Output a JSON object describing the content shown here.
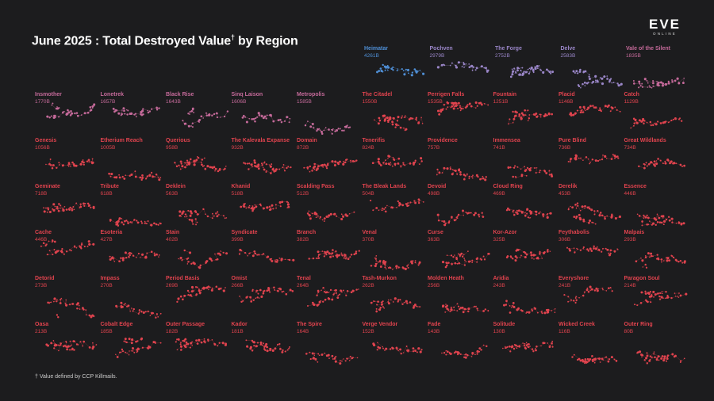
{
  "title": {
    "main": "June 2025 : Total Destroyed Value",
    "mark": "†",
    "suffix": " by Region"
  },
  "logo": {
    "brand": "EVE",
    "sub": "ONLINE"
  },
  "footnote": "† Value defined by CCP Killmails.",
  "colors": {
    "background": "#1c1c1e",
    "top": "#4f8fd6",
    "mid": "#9a86c8",
    "pink": "#c56a9a",
    "red": "#e0434e"
  },
  "chart_data": {
    "type": "scatter",
    "title": "June 2025 : Total Destroyed Value† by Region",
    "unit": "B",
    "regions": [
      {
        "name": "Heimatar",
        "value": "4261B"
      },
      {
        "name": "Pochven",
        "value": "2979B"
      },
      {
        "name": "The Forge",
        "value": "2752B"
      },
      {
        "name": "Delve",
        "value": "2583B"
      },
      {
        "name": "Vale of the Silent",
        "value": "1835B"
      },
      {
        "name": "Insmother",
        "value": "1770B"
      },
      {
        "name": "Lonetrek",
        "value": "1657B"
      },
      {
        "name": "Black Rise",
        "value": "1643B"
      },
      {
        "name": "Sinq Laison",
        "value": "1606B"
      },
      {
        "name": "Metropolis",
        "value": "1585B"
      },
      {
        "name": "The Citadel",
        "value": "1550B"
      },
      {
        "name": "Perrigen Falls",
        "value": "1535B"
      },
      {
        "name": "Fountain",
        "value": "1251B"
      },
      {
        "name": "Placid",
        "value": "1146B"
      },
      {
        "name": "Catch",
        "value": "1129B"
      },
      {
        "name": "Genesis",
        "value": "1056B"
      },
      {
        "name": "Etherium Reach",
        "value": "1005B"
      },
      {
        "name": "Querious",
        "value": "958B"
      },
      {
        "name": "The Kalevala Expanse",
        "value": "932B"
      },
      {
        "name": "Domain",
        "value": "872B"
      },
      {
        "name": "Tenerifis",
        "value": "824B"
      },
      {
        "name": "Providence",
        "value": "757B"
      },
      {
        "name": "Immensea",
        "value": "741B"
      },
      {
        "name": "Pure Blind",
        "value": "736B"
      },
      {
        "name": "Great Wildlands",
        "value": "734B"
      },
      {
        "name": "Geminate",
        "value": "718B"
      },
      {
        "name": "Tribute",
        "value": "618B"
      },
      {
        "name": "Deklein",
        "value": "563B"
      },
      {
        "name": "Khanid",
        "value": "518B"
      },
      {
        "name": "Scalding Pass",
        "value": "512B"
      },
      {
        "name": "The Bleak Lands",
        "value": "504B"
      },
      {
        "name": "Devoid",
        "value": "498B"
      },
      {
        "name": "Cloud Ring",
        "value": "469B"
      },
      {
        "name": "Derelik",
        "value": "453B"
      },
      {
        "name": "Essence",
        "value": "446B"
      },
      {
        "name": "Cache",
        "value": "446B"
      },
      {
        "name": "Esoteria",
        "value": "427B"
      },
      {
        "name": "Stain",
        "value": "402B"
      },
      {
        "name": "Syndicate",
        "value": "399B"
      },
      {
        "name": "Branch",
        "value": "382B"
      },
      {
        "name": "Venal",
        "value": "370B"
      },
      {
        "name": "Curse",
        "value": "363B"
      },
      {
        "name": "Kor-Azor",
        "value": "325B"
      },
      {
        "name": "Feythabolis",
        "value": "306B"
      },
      {
        "name": "Malpais",
        "value": "293B"
      },
      {
        "name": "Detorid",
        "value": "273B"
      },
      {
        "name": "Impass",
        "value": "270B"
      },
      {
        "name": "Period Basis",
        "value": "269B"
      },
      {
        "name": "Omist",
        "value": "266B"
      },
      {
        "name": "Tenal",
        "value": "264B"
      },
      {
        "name": "Tash-Murkon",
        "value": "262B"
      },
      {
        "name": "Molden Heath",
        "value": "256B"
      },
      {
        "name": "Aridia",
        "value": "243B"
      },
      {
        "name": "Everyshore",
        "value": "241B"
      },
      {
        "name": "Paragon Soul",
        "value": "214B"
      },
      {
        "name": "Oasa",
        "value": "213B"
      },
      {
        "name": "Cobalt Edge",
        "value": "185B"
      },
      {
        "name": "Outer Passage",
        "value": "182B"
      },
      {
        "name": "Kador",
        "value": "181B"
      },
      {
        "name": "The Spire",
        "value": "164B"
      },
      {
        "name": "Verge Vendor",
        "value": "152B"
      },
      {
        "name": "Fade",
        "value": "143B"
      },
      {
        "name": "Solitude",
        "value": "130B"
      },
      {
        "name": "Wicked Creek",
        "value": "116B"
      },
      {
        "name": "Outer Ring",
        "value": "80B"
      }
    ]
  }
}
